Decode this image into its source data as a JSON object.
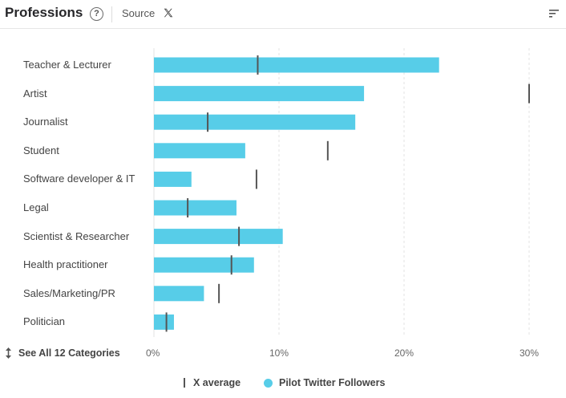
{
  "header": {
    "title": "Professions",
    "help_icon": "question-circle-icon",
    "source_label": "Source",
    "source_icon": "x-logo-icon",
    "sort_icon": "sort-lines-icon"
  },
  "see_all": {
    "icon": "vertical-arrows-icon",
    "label": "See All 12 Categories"
  },
  "legend": {
    "average_label": "X average",
    "followers_label": "Pilot Twitter Followers"
  },
  "colors": {
    "bar": "#57cde8",
    "average_marker": "#555555",
    "grid": "#e3e3e3"
  },
  "chart_data": {
    "type": "bar",
    "orientation": "horizontal",
    "categories": [
      "Teacher & Lecturer",
      "Artist",
      "Journalist",
      "Student",
      "Software developer & IT",
      "Legal",
      "Scientist & Researcher",
      "Health practitioner",
      "Sales/Marketing/PR",
      "Politician"
    ],
    "series": [
      {
        "name": "Pilot Twitter Followers",
        "values": [
          22.8,
          16.8,
          16.1,
          7.3,
          3.0,
          6.6,
          10.3,
          8.0,
          4.0,
          1.6
        ]
      },
      {
        "name": "X average",
        "values": [
          8.3,
          30.0,
          4.3,
          13.9,
          8.2,
          2.7,
          6.8,
          6.2,
          5.2,
          1.0
        ]
      }
    ],
    "xlim": [
      0,
      30
    ],
    "ticks": [
      0,
      10,
      20,
      30
    ],
    "tick_labels": [
      "0%",
      "10%",
      "20%",
      "30%"
    ],
    "grid": true
  }
}
